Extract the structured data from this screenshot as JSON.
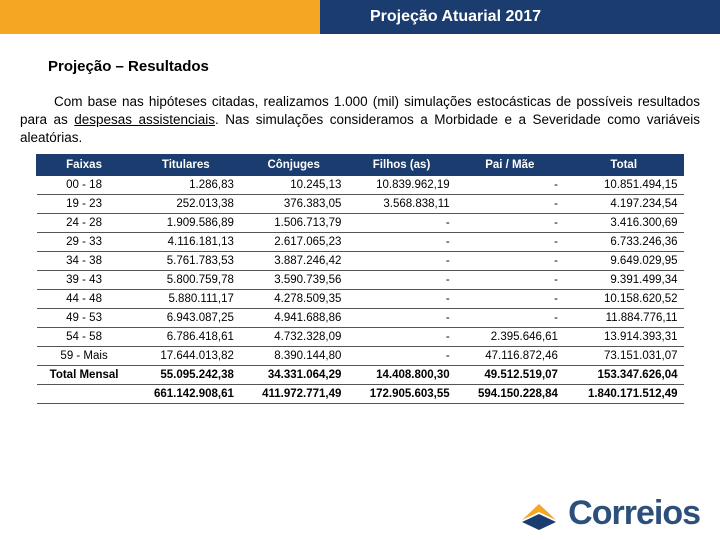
{
  "header": {
    "title": "Projeção Atuarial 2017",
    "title_bg": "#1a3c6e",
    "bar_bg": "#f5a623"
  },
  "subtitle": "Projeção – Resultados",
  "paragraph_parts": {
    "p1": "Com base nas hipóteses citadas, realizamos 1.000 (mil) simulações estocásticas de possíveis resultados para as ",
    "underlined": "despesas assistenciais",
    "p2": ". Nas simulações consideramos a Morbidade e a Severidade como variáveis aleatórias."
  },
  "table": {
    "columns": [
      "Faixas",
      "Titulares",
      "Cônjuges",
      "Filhos (as)",
      "Pai / Mãe",
      "Total"
    ],
    "rows": [
      [
        "00 - 18",
        "1.286,83",
        "10.245,13",
        "10.839.962,19",
        "-",
        "10.851.494,15"
      ],
      [
        "19 - 23",
        "252.013,38",
        "376.383,05",
        "3.568.838,11",
        "-",
        "4.197.234,54"
      ],
      [
        "24 - 28",
        "1.909.586,89",
        "1.506.713,79",
        "-",
        "-",
        "3.416.300,69"
      ],
      [
        "29 - 33",
        "4.116.181,13",
        "2.617.065,23",
        "-",
        "-",
        "6.733.246,36"
      ],
      [
        "34 - 38",
        "5.761.783,53",
        "3.887.246,42",
        "-",
        "-",
        "9.649.029,95"
      ],
      [
        "39 - 43",
        "5.800.759,78",
        "3.590.739,56",
        "-",
        "-",
        "9.391.499,34"
      ],
      [
        "44 - 48",
        "5.880.111,17",
        "4.278.509,35",
        "-",
        "-",
        "10.158.620,52"
      ],
      [
        "49 - 53",
        "6.943.087,25",
        "4.941.688,86",
        "-",
        "-",
        "11.884.776,11"
      ],
      [
        "54 - 58",
        "6.786.418,61",
        "4.732.328,09",
        "-",
        "2.395.646,61",
        "13.914.393,31"
      ],
      [
        "59 - Mais",
        "17.644.013,82",
        "8.390.144,80",
        "-",
        "47.116.872,46",
        "73.151.031,07"
      ]
    ],
    "totals": [
      [
        "Total Mensal",
        "55.095.242,38",
        "34.331.064,29",
        "14.408.800,30",
        "49.512.519,07",
        "153.347.626,04"
      ],
      [
        "",
        "661.142.908,61",
        "411.972.771,49",
        "172.905.603,55",
        "594.150.228,84",
        "1.840.171.512,49"
      ]
    ]
  },
  "logo": {
    "text": "Correios",
    "text_color": "#2d4f7c",
    "yellow": "#f5a623",
    "blue": "#1a3c6e"
  }
}
